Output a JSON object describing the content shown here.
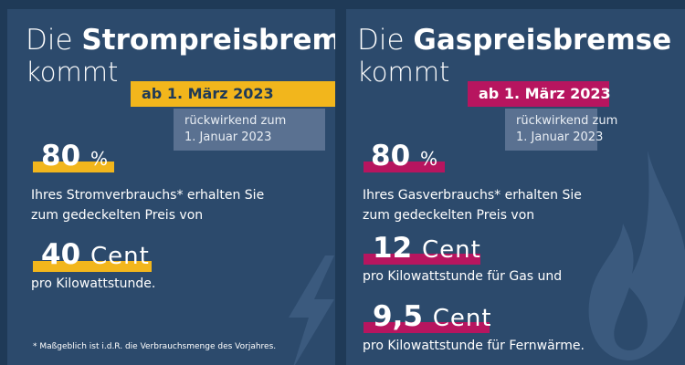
{
  "strom": {
    "title_prefix": "Die ",
    "title_bold": "Strompreisbremse",
    "subtitle": "kommt",
    "date_badge": "ab 1. März 2023",
    "retro_line1": "rückwirkend zum",
    "retro_line2": "1. Januar 2023",
    "percent_value": "80",
    "percent_unit": "%",
    "percent_desc_line1": "Ihres Stromverbrauchs* erhalten Sie",
    "percent_desc_line2": "zum gedeckelten Preis von",
    "price_value": "40",
    "price_unit": "Cent",
    "price_desc": "pro Kilowattstunde.",
    "footnote": "* Maßgeblich ist i.d.R. die Verbrauchsmenge des Vorjahres.",
    "accent_color": "#f2b61c",
    "deco_icon": "lightning-bolt-icon"
  },
  "gas": {
    "title_prefix": "Die ",
    "title_bold": "Gaspreisbremse",
    "subtitle": "kommt",
    "date_badge": "ab 1. März 2023",
    "retro_line1": "rückwirkend zum",
    "retro_line2": "1. Januar 2023",
    "percent_value": "80",
    "percent_unit": "%",
    "percent_desc_line1": "Ihres Gasverbrauchs* erhalten Sie",
    "percent_desc_line2": "zum gedeckelten Preis von",
    "price1_value": "12",
    "price1_unit": "Cent",
    "price1_desc": "pro Kilowattstunde für Gas und",
    "price2_value": "9,5",
    "price2_unit": "Cent",
    "price2_desc": "pro Kilowattstunde für Fernwärme.",
    "accent_color": "#b7155f",
    "deco_icon": "gas-flame-icon"
  },
  "background_color": "#1f3a57",
  "panel_color": "#2c4a6c"
}
